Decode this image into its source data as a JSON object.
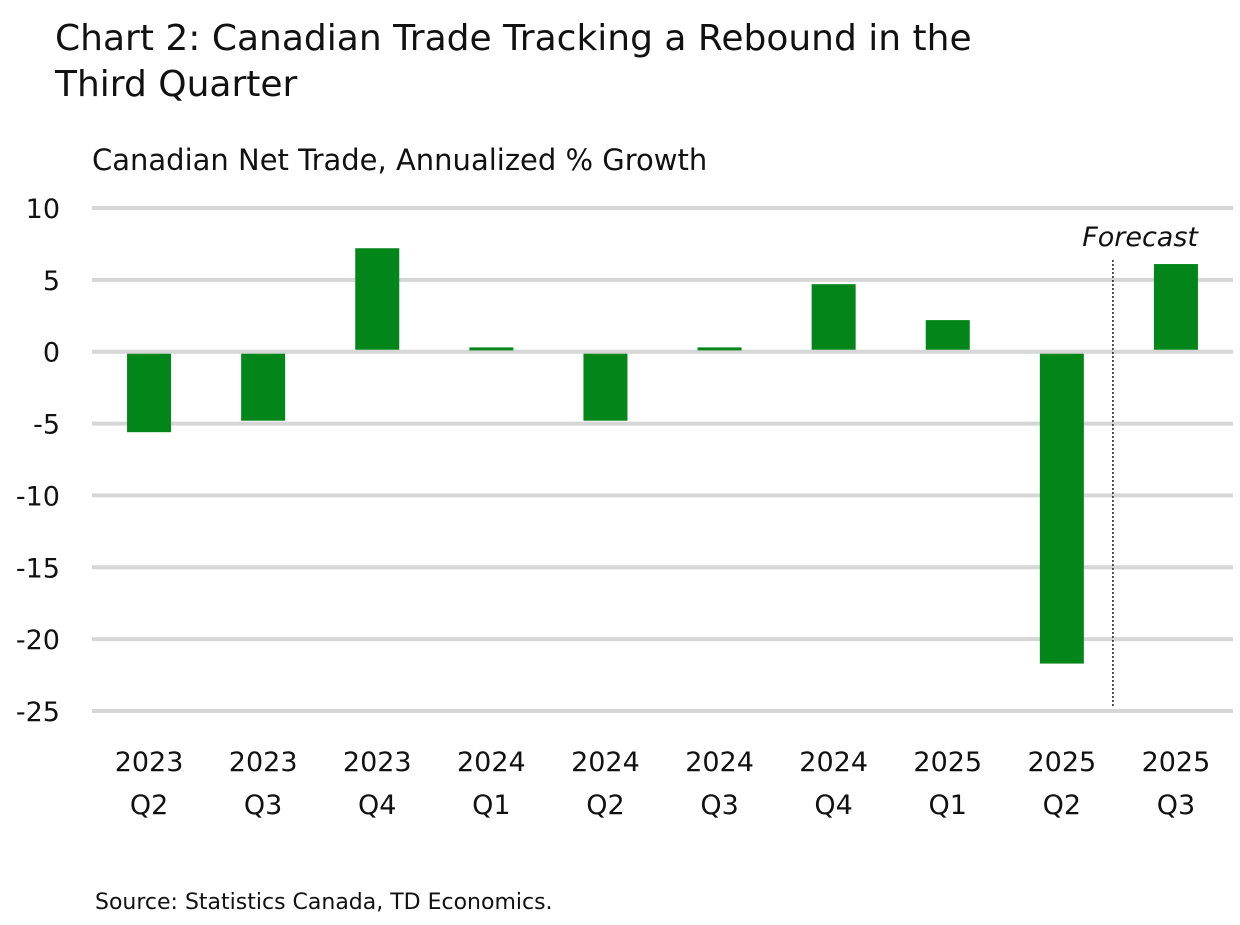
{
  "chart_data": {
    "type": "bar",
    "title": "Chart 2: Canadian Trade Tracking a Rebound in the Third Quarter",
    "subtitle": "Canadian Net Trade, Annualized % Growth",
    "source": "Source: Statistics Canada, TD Economics.",
    "categories": [
      [
        "2023",
        "Q2"
      ],
      [
        "2023",
        "Q3"
      ],
      [
        "2023",
        "Q4"
      ],
      [
        "2024",
        "Q1"
      ],
      [
        "2024",
        "Q2"
      ],
      [
        "2024",
        "Q3"
      ],
      [
        "2024",
        "Q4"
      ],
      [
        "2025",
        "Q1"
      ],
      [
        "2025",
        "Q2"
      ],
      [
        "2025",
        "Q3"
      ]
    ],
    "values": [
      -5.6,
      -4.8,
      7.2,
      0.3,
      -4.8,
      0.3,
      4.7,
      2.2,
      -21.7,
      6.1
    ],
    "ylim": [
      -25,
      10
    ],
    "yticks": [
      10,
      5,
      0,
      -5,
      -10,
      -15,
      -20,
      -25
    ],
    "grid": true,
    "annotation": {
      "text": "Forecast",
      "after_category_index": 8
    },
    "colors": {
      "bar": "#02861A",
      "grid": "#D6D6D6"
    }
  }
}
